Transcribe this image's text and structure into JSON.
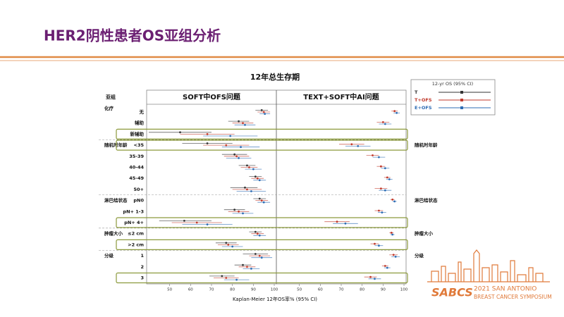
{
  "header": {
    "title": "HER2阴性患者OS亚组分析"
  },
  "chart_data": {
    "type": "forest",
    "title": "12年总生存期",
    "subgroup_header": "亚组",
    "x_label": "Kaplan-Meier  12年OS率% (95% CI)",
    "legend": {
      "title": "12-yr OS (95% CI)",
      "position": "upper right"
    },
    "groups": [
      {
        "name": "化疗",
        "label_right": false,
        "categories": [
          "无",
          "辅助",
          "新辅助"
        ]
      },
      {
        "name": "随机时年龄",
        "label_right": true,
        "categories": [
          "<35",
          "35-39",
          "40-44",
          "45-49",
          "50+"
        ]
      },
      {
        "name": "淋巴结状态",
        "label_right": true,
        "categories": [
          "pN0",
          "pN+ 1-3",
          "pN+ 4+"
        ]
      },
      {
        "name": "肿瘤大小",
        "label_right": true,
        "categories": [
          "≤2 cm",
          ">2 cm"
        ]
      },
      {
        "name": "分级",
        "label_right": true,
        "categories": [
          "1",
          "2",
          "3"
        ]
      }
    ],
    "highlight": [
      2,
      3,
      10,
      12,
      15
    ],
    "xlim": [
      39,
      101
    ],
    "xticks": [
      50,
      60,
      70,
      80,
      90,
      100
    ],
    "panels": [
      {
        "title": "SOFT中OFS问题",
        "series": [
          {
            "name": "T",
            "color": "#333333",
            "values": [
              94,
              83,
              55,
              68,
              81,
              87,
              91,
              86,
              93,
              81,
              57,
              91,
              77,
              91,
              85,
              75
            ],
            "lower": [
              91,
              78,
              40,
              56,
              75,
              83,
              88,
              79,
              90,
              76,
              45,
              88,
              72,
              85,
              81,
              69
            ],
            "upper": [
              97,
              88,
              70,
              80,
              87,
              91,
              94,
              92,
              96,
              86,
              70,
              94,
              82,
              97,
              89,
              81
            ]
          },
          {
            "name": "T+OFS",
            "color": "#c0392b",
            "values": [
              95,
              85,
              68,
              77,
              82,
              88,
              92,
              87,
              94,
              83,
              63,
              92,
              78,
              93,
              87,
              77
            ],
            "lower": [
              92,
              80,
              55,
              66,
              76,
              84,
              89,
              80,
              91,
              78,
              51,
              89,
              73,
              88,
              83,
              71
            ],
            "upper": [
              98,
              90,
              81,
              88,
              88,
              92,
              95,
              94,
              97,
              88,
              75,
              95,
              83,
              98,
              91,
              83
            ]
          },
          {
            "name": "E+OFS",
            "color": "#2e6db4",
            "values": [
              95.5,
              86,
              79,
              84,
              83,
              90,
              93,
              89,
              95,
              85,
              68,
              93,
              80,
              94,
              89,
              82
            ],
            "lower": [
              93,
              81,
              66,
              75,
              77,
              86,
              90,
              82,
              92,
              80,
              56,
              90,
              75,
              89,
              85,
              76
            ],
            "upper": [
              98,
              91,
              92,
              93,
              89,
              94,
              96,
              96,
              98,
              90,
              80,
              96,
              85,
              99,
              93,
              88
            ]
          }
        ]
      },
      {
        "title": "TEXT+SOFT中AI问题",
        "series": [
          {
            "name": "T+OFS",
            "color": "#c0392b",
            "values": [
              95.5,
              90,
              null,
              75,
              85,
              89,
              92,
              89,
              94.5,
              88,
              68,
              94,
              86,
              95,
              91,
              84
            ],
            "lower": [
              94,
              87,
              null,
              69,
              82,
              87,
              90.5,
              86,
              93.5,
              86,
              62,
              93,
              84,
              93,
              89.5,
              81
            ],
            "upper": [
              97,
              93,
              null,
              81,
              88,
              91,
              93.5,
              92,
              95.5,
              90,
              74,
              95,
              88,
              97,
              92.5,
              87
            ]
          },
          {
            "name": "E+OFS",
            "color": "#2e6db4",
            "values": [
              96.5,
              91,
              null,
              78,
              88,
              91,
              93,
              91,
              95.5,
              89.5,
              72,
              94.5,
              88,
              96,
              92,
              86
            ],
            "lower": [
              95,
              88,
              null,
              72,
              85,
              89,
              91.5,
              88,
              94.5,
              87.5,
              66,
              93.5,
              86,
              94,
              90.5,
              83
            ],
            "upper": [
              98,
              94,
              null,
              84,
              91,
              93,
              94.5,
              94,
              96.5,
              91.5,
              78,
              95.5,
              90,
              98,
              93.5,
              89
            ]
          }
        ]
      }
    ]
  },
  "logo": {
    "name": "SABCS",
    "line1": "2021 SAN ANTONIO",
    "line2": "BREAST CANCER SYMPOSIUM"
  }
}
